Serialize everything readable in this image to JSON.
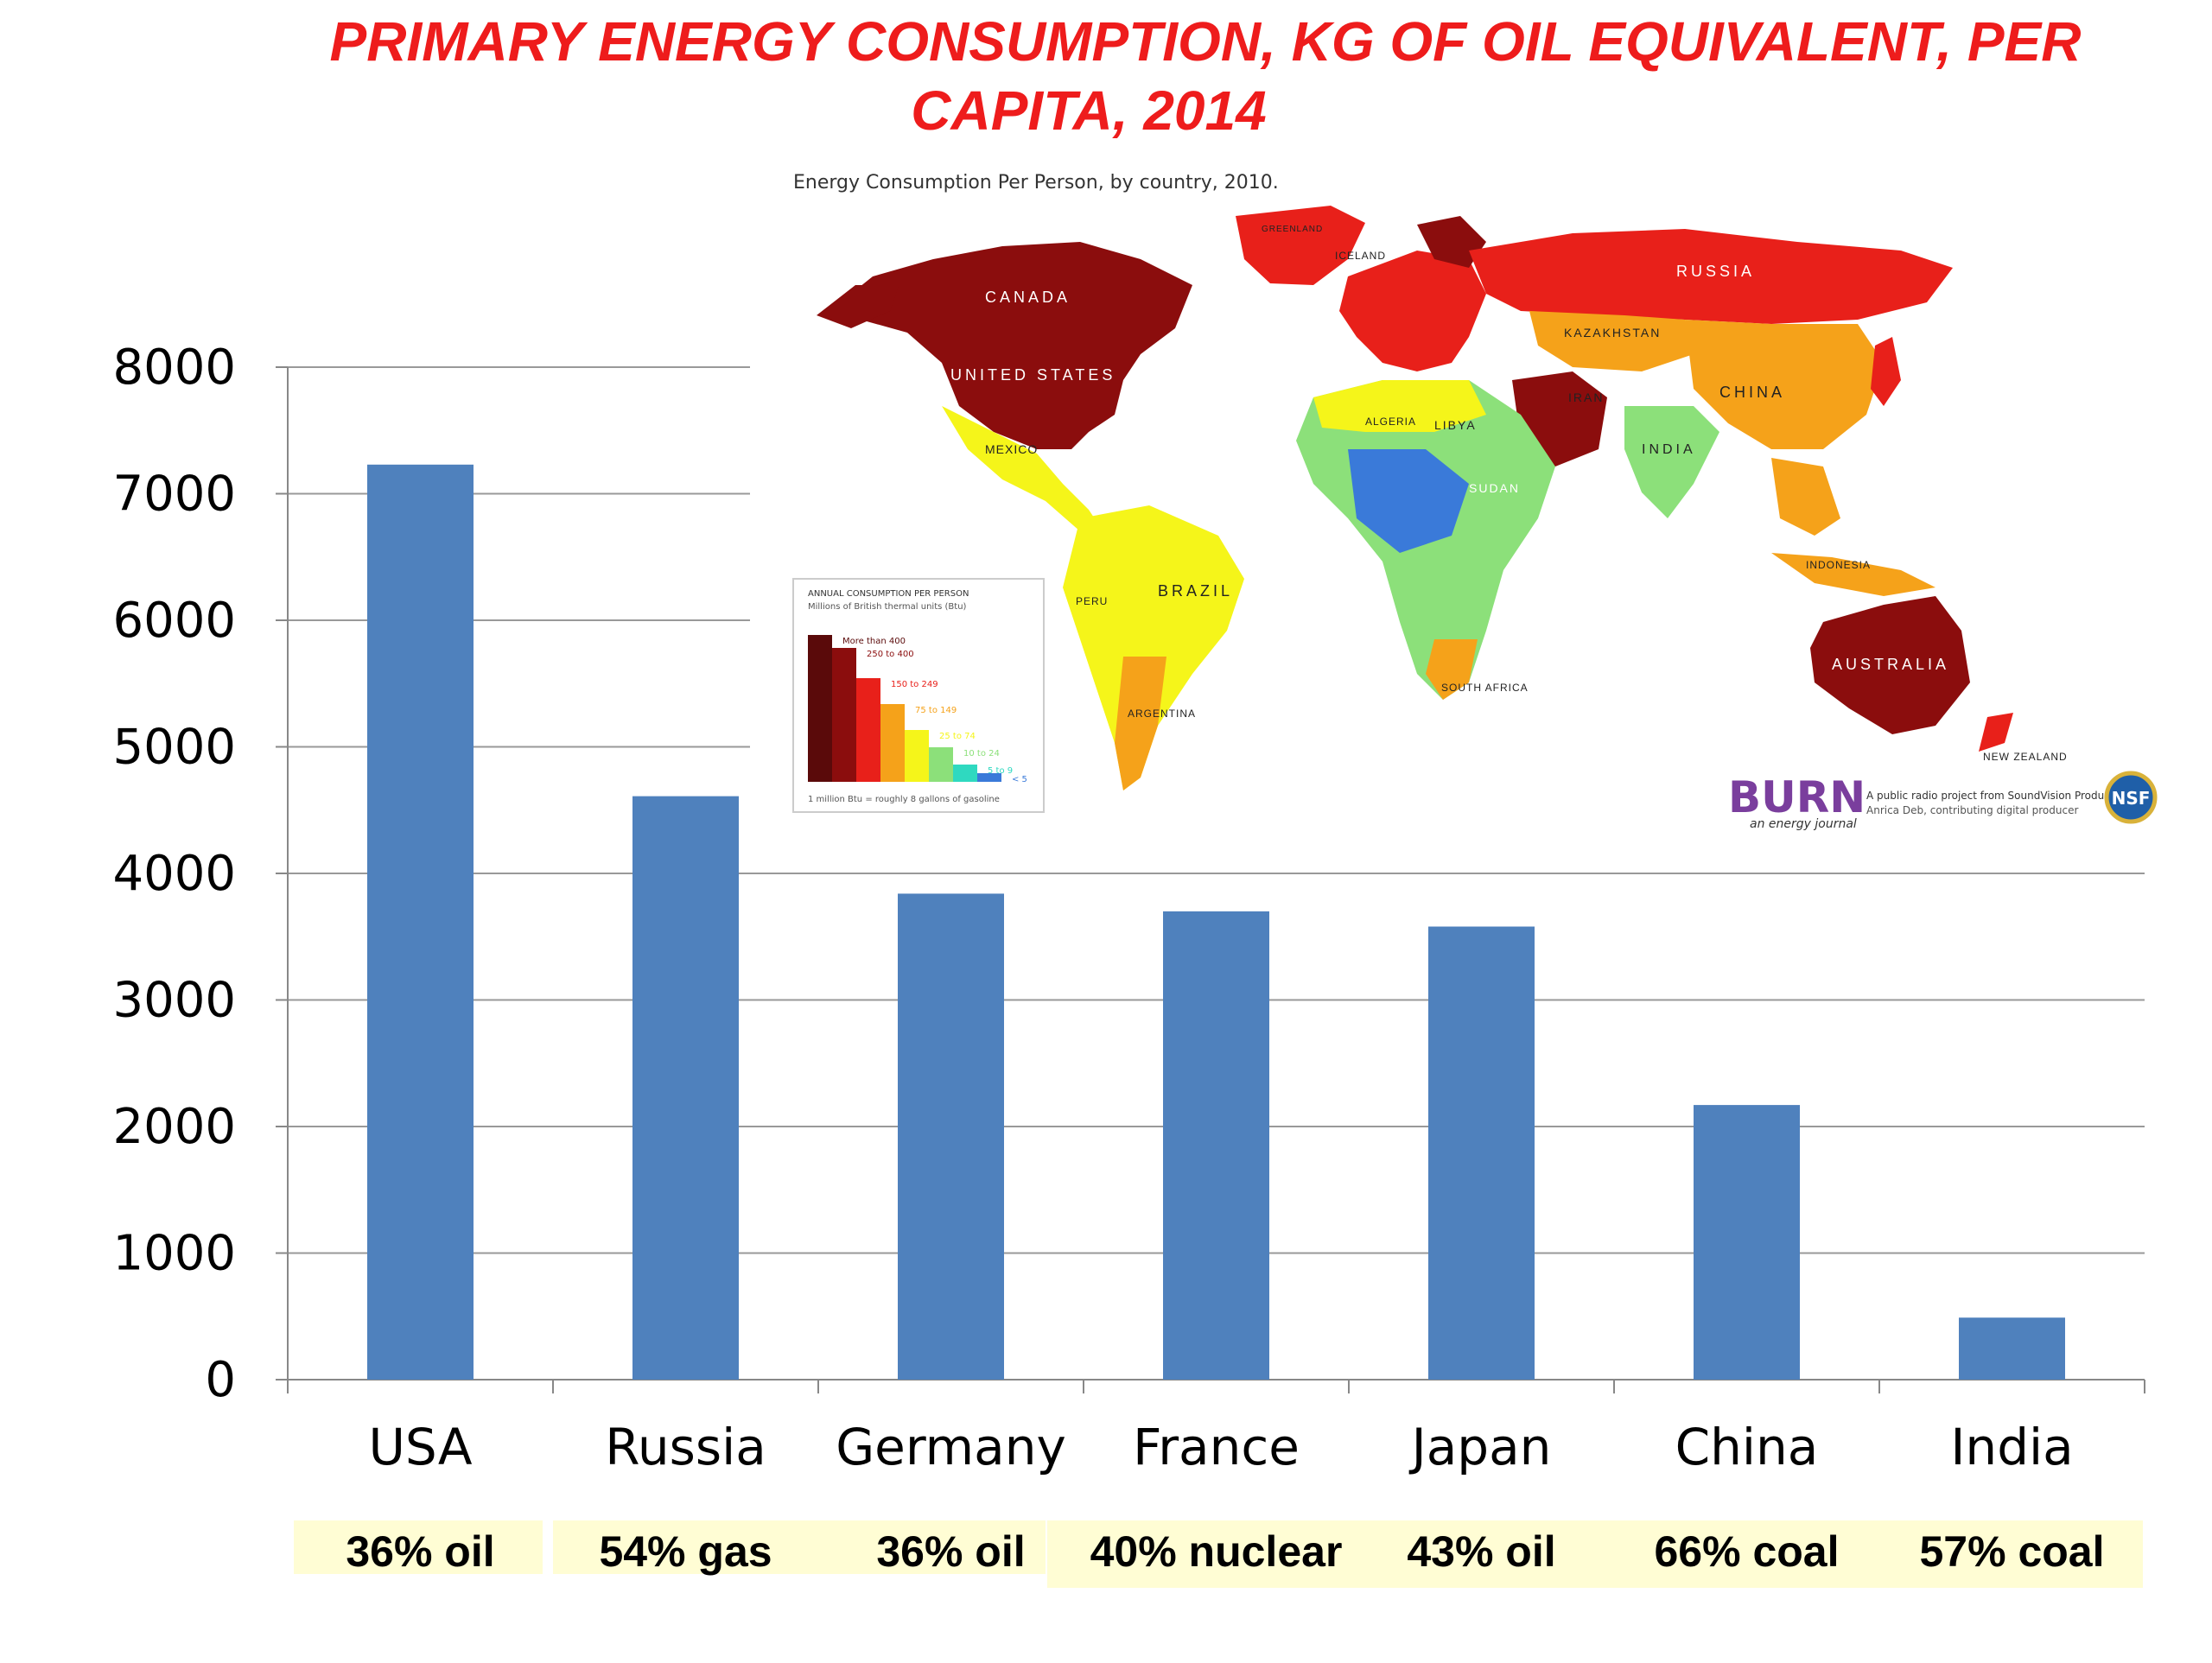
{
  "title": {
    "line1": "PRIMARY ENERGY CONSUMPTION, KG OF OIL EQUIVALENT, PER",
    "line2": "CAPITA,  2014"
  },
  "chart_data": {
    "type": "bar",
    "categories": [
      "USA",
      "Russia",
      "Germany",
      "France",
      "Japan",
      "China",
      "India"
    ],
    "values": [
      7230,
      4610,
      3840,
      3700,
      3580,
      2170,
      490
    ],
    "ylim": [
      0,
      8000
    ],
    "yticks": [
      "0",
      "1000",
      "2000",
      "3000",
      "4000",
      "5000",
      "6000",
      "7000",
      "8000"
    ],
    "grid": true,
    "bar_color": "#4f81bd",
    "annotations": [
      "36% oil",
      "54% gas",
      "36% oil",
      "40% nuclear",
      "43% oil",
      "66% coal",
      "57% coal"
    ],
    "annotation_bg": "#fffdd4"
  },
  "inset_map": {
    "title": "Energy Consumption Per Person, by country, 2010.",
    "country_labels": [
      "CANADA",
      "UNITED STATES",
      "RUSSIA",
      "KAZAKHSTAN",
      "CHINA",
      "INDIA",
      "BRAZIL",
      "AUSTRALIA",
      "MEXICO",
      "LIBYA",
      "SUDAN",
      "ALGERIA",
      "IRAN",
      "INDONESIA",
      "PERU",
      "ARGENTINA",
      "SOUTH AFRICA",
      "NEW ZEALAND",
      "GREENLAND",
      "ICELAND"
    ],
    "legend": {
      "title": "ANNUAL CONSUMPTION PER PERSON",
      "subtitle": "Millions of British thermal units (Btu)",
      "items": [
        "More than 400",
        "250 to 400",
        "150 to 249",
        "75 to 149",
        "25 to 74",
        "10 to 24",
        "5 to 9",
        "< 5"
      ],
      "colors": [
        "#5a0a0a",
        "#8b0d0d",
        "#e8201a",
        "#f5a21a",
        "#f5f51a",
        "#8ce07a",
        "#2fd9c0",
        "#3a7ad9"
      ],
      "footnote": "1 million Btu = roughly 8 gallons of gasoline"
    },
    "brand": "BURN",
    "brand_tagline": "an energy journal",
    "credit_line1": "A public radio project from SoundVision Productions",
    "credit_line2": "Anrica Deb, contributing digital producer",
    "seal": "NSF"
  }
}
